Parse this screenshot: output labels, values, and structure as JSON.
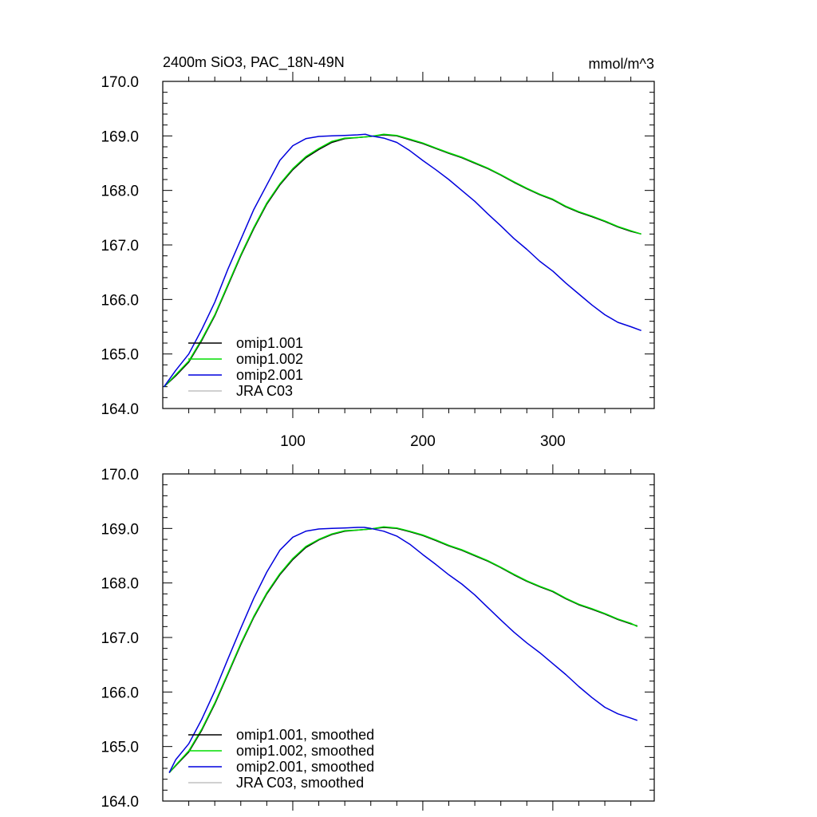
{
  "header": {
    "title": "2400m SiO3, PAC_18N-49N",
    "units": "mmol/m^3"
  },
  "colors": {
    "omip1_001": "#000000",
    "omip1_002": "#00dd00",
    "omip2_001": "#0000dd",
    "jra_c03": "#c0c0c0"
  },
  "chart_data": [
    {
      "type": "line",
      "xlim": [
        0,
        378
      ],
      "ylim": [
        164.0,
        170.0
      ],
      "x_ticks": [
        100,
        200,
        300
      ],
      "x_tick_labels": [
        "100",
        "200",
        "300"
      ],
      "y_ticks": [
        164,
        165,
        166,
        167,
        168,
        169,
        170
      ],
      "y_tick_labels": [
        "164.0",
        "165.0",
        "166.0",
        "167.0",
        "168.0",
        "169.0",
        "170.0"
      ],
      "legend_position": "bottom-left",
      "series": [
        {
          "name": "omip1.001",
          "color": "#000000",
          "x": [
            1,
            10,
            20,
            30,
            40,
            50,
            60,
            70,
            80,
            90,
            100,
            110,
            120,
            130,
            140,
            150,
            160,
            170,
            180,
            190,
            200,
            210,
            220,
            230,
            240,
            250,
            260,
            270,
            280,
            290,
            300,
            310,
            320,
            330,
            340,
            350,
            360,
            368
          ],
          "y": [
            164.4,
            164.6,
            164.85,
            165.25,
            165.7,
            166.25,
            166.8,
            167.3,
            167.75,
            168.1,
            168.38,
            168.6,
            168.75,
            168.88,
            168.95,
            168.97,
            168.99,
            169.02,
            169.0,
            168.93,
            168.86,
            168.77,
            168.68,
            168.6,
            168.5,
            168.4,
            168.28,
            168.15,
            168.03,
            167.92,
            167.83,
            167.7,
            167.6,
            167.52,
            167.43,
            167.33,
            167.25,
            167.2
          ]
        },
        {
          "name": "omip1.002",
          "color": "#00dd00",
          "x": [
            1,
            10,
            20,
            30,
            40,
            50,
            60,
            70,
            80,
            90,
            100,
            110,
            120,
            130,
            140,
            150,
            160,
            170,
            180,
            190,
            200,
            210,
            220,
            230,
            240,
            250,
            260,
            270,
            280,
            290,
            300,
            310,
            320,
            330,
            340,
            350,
            360,
            368
          ],
          "y": [
            164.4,
            164.62,
            164.87,
            165.27,
            165.72,
            166.27,
            166.82,
            167.32,
            167.77,
            168.12,
            168.4,
            168.62,
            168.77,
            168.9,
            168.96,
            168.97,
            168.99,
            169.03,
            169.01,
            168.94,
            168.87,
            168.78,
            168.69,
            168.61,
            168.51,
            168.41,
            168.29,
            168.16,
            168.04,
            167.93,
            167.84,
            167.71,
            167.61,
            167.53,
            167.44,
            167.34,
            167.26,
            167.2
          ]
        },
        {
          "name": "omip2.001",
          "color": "#0000dd",
          "x": [
            1,
            10,
            20,
            30,
            40,
            50,
            60,
            70,
            80,
            90,
            100,
            110,
            120,
            130,
            140,
            150,
            156,
            160,
            170,
            180,
            190,
            200,
            210,
            220,
            230,
            240,
            250,
            260,
            270,
            280,
            290,
            300,
            310,
            320,
            330,
            340,
            350,
            360,
            368
          ],
          "y": [
            164.4,
            164.7,
            165.0,
            165.45,
            165.95,
            166.55,
            167.1,
            167.65,
            168.1,
            168.55,
            168.82,
            168.95,
            168.99,
            169.0,
            169.01,
            169.02,
            169.03,
            169.0,
            168.96,
            168.88,
            168.73,
            168.55,
            168.38,
            168.2,
            168.0,
            167.8,
            167.57,
            167.35,
            167.12,
            166.92,
            166.7,
            166.52,
            166.3,
            166.1,
            165.9,
            165.72,
            165.58,
            165.5,
            165.43
          ]
        },
        {
          "name": "JRA C03",
          "color": "#c0c0c0",
          "x": [],
          "y": []
        }
      ]
    },
    {
      "type": "line",
      "xlim": [
        0,
        378
      ],
      "ylim": [
        164.0,
        170.0
      ],
      "x_ticks": [
        100,
        200,
        300
      ],
      "x_tick_labels": [],
      "y_ticks": [
        164,
        165,
        166,
        167,
        168,
        169,
        170
      ],
      "y_tick_labels": [
        "164.0",
        "165.0",
        "166.0",
        "167.0",
        "168.0",
        "169.0",
        "170.0"
      ],
      "legend_position": "bottom-left",
      "series": [
        {
          "name": "omip1.001, smoothed",
          "color": "#000000",
          "x": [
            5,
            10,
            20,
            30,
            40,
            50,
            60,
            70,
            80,
            90,
            100,
            110,
            120,
            130,
            140,
            150,
            160,
            170,
            180,
            190,
            200,
            210,
            220,
            230,
            240,
            250,
            260,
            270,
            280,
            290,
            300,
            310,
            320,
            330,
            340,
            350,
            360,
            365
          ],
          "y": [
            164.52,
            164.65,
            164.9,
            165.3,
            165.78,
            166.32,
            166.87,
            167.37,
            167.8,
            168.15,
            168.43,
            168.65,
            168.79,
            168.89,
            168.95,
            168.97,
            168.99,
            169.02,
            169.0,
            168.94,
            168.87,
            168.78,
            168.68,
            168.6,
            168.5,
            168.4,
            168.28,
            168.15,
            168.03,
            167.93,
            167.84,
            167.71,
            167.6,
            167.52,
            167.43,
            167.33,
            167.25,
            167.21
          ]
        },
        {
          "name": "omip1.002, smoothed",
          "color": "#00dd00",
          "x": [
            5,
            10,
            20,
            30,
            40,
            50,
            60,
            70,
            80,
            90,
            100,
            110,
            120,
            130,
            140,
            150,
            160,
            170,
            180,
            190,
            200,
            210,
            220,
            230,
            240,
            250,
            260,
            270,
            280,
            290,
            300,
            310,
            320,
            330,
            340,
            350,
            360,
            365
          ],
          "y": [
            164.52,
            164.66,
            164.92,
            165.32,
            165.8,
            166.34,
            166.89,
            167.39,
            167.82,
            168.17,
            168.45,
            168.67,
            168.8,
            168.9,
            168.96,
            168.97,
            168.99,
            169.03,
            169.01,
            168.95,
            168.88,
            168.79,
            168.69,
            168.61,
            168.51,
            168.41,
            168.29,
            168.16,
            168.04,
            167.94,
            167.85,
            167.72,
            167.61,
            167.53,
            167.44,
            167.34,
            167.26,
            167.2
          ]
        },
        {
          "name": "omip2.001, smoothed",
          "color": "#0000dd",
          "x": [
            5,
            10,
            20,
            30,
            40,
            50,
            60,
            70,
            80,
            90,
            100,
            110,
            120,
            130,
            140,
            150,
            155,
            160,
            170,
            180,
            190,
            200,
            210,
            220,
            230,
            240,
            250,
            260,
            270,
            280,
            290,
            300,
            310,
            320,
            330,
            340,
            350,
            360,
            365
          ],
          "y": [
            164.52,
            164.76,
            165.05,
            165.5,
            166.02,
            166.6,
            167.17,
            167.72,
            168.2,
            168.6,
            168.84,
            168.95,
            168.99,
            169.0,
            169.01,
            169.02,
            169.02,
            169.0,
            168.95,
            168.86,
            168.71,
            168.52,
            168.34,
            168.15,
            167.98,
            167.78,
            167.55,
            167.32,
            167.1,
            166.9,
            166.72,
            166.52,
            166.32,
            166.1,
            165.9,
            165.72,
            165.6,
            165.52,
            165.48
          ]
        },
        {
          "name": "JRA C03, smoothed",
          "color": "#c0c0c0",
          "x": [],
          "y": []
        }
      ]
    }
  ]
}
